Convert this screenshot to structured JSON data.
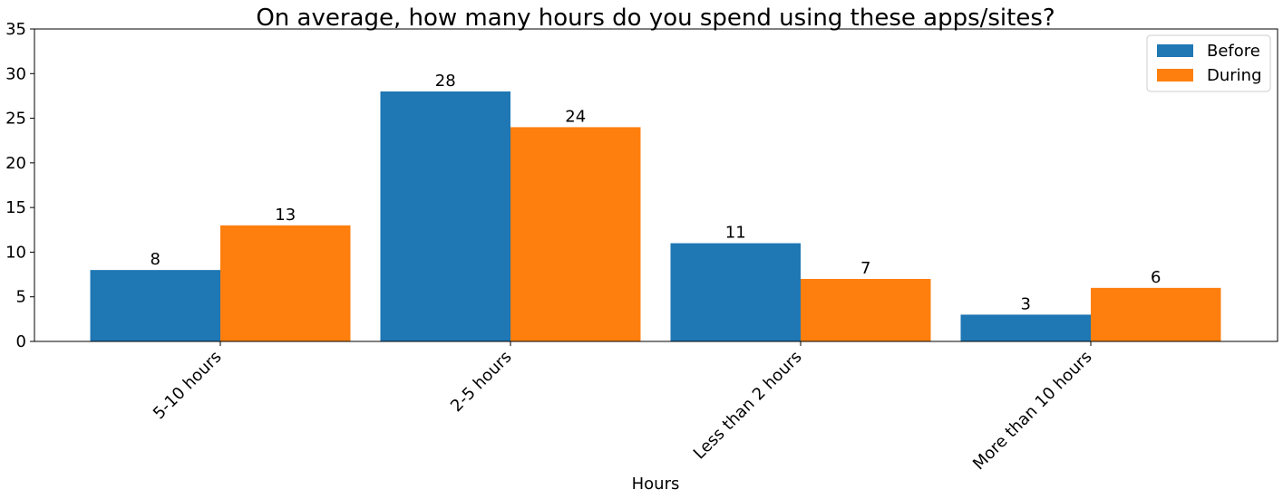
{
  "chart_data": {
    "type": "bar",
    "title": "On average, how many hours do you spend using these apps/sites?",
    "xlabel": "Hours",
    "ylabel": "",
    "categories": [
      "5-10 hours",
      "2-5 hours",
      "Less than 2 hours",
      "More than 10 hours"
    ],
    "series": [
      {
        "name": "Before",
        "values": [
          8,
          28,
          11,
          3
        ],
        "color": "#1f77b4"
      },
      {
        "name": "During",
        "values": [
          13,
          24,
          7,
          6
        ],
        "color": "#ff7f0e"
      }
    ],
    "ylim": [
      0,
      35
    ],
    "yticks": [
      0,
      5,
      10,
      15,
      20,
      25,
      30,
      35
    ],
    "legend_position": "top-right",
    "grid": false,
    "xtick_rotation": -45
  }
}
